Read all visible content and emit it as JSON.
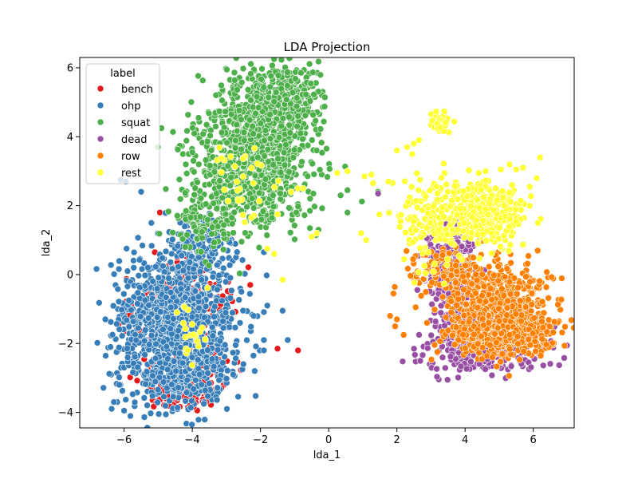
{
  "chart_data": {
    "type": "scatter",
    "title": "LDA Projection",
    "xlabel": "lda_1",
    "ylabel": "lda_2",
    "xlim": [
      -7.3,
      7.2
    ],
    "ylim": [
      -4.45,
      6.3
    ],
    "xticks": [
      -6,
      -4,
      -2,
      0,
      2,
      4,
      6
    ],
    "yticks": [
      -4,
      -2,
      0,
      2,
      4,
      6
    ],
    "grid": false,
    "legend": {
      "title": "label",
      "placement": "top-left"
    },
    "series": [
      {
        "name": "bench",
        "color": "#e41a1c",
        "clusters": [
          {
            "cx": -4.6,
            "cy": -1.2,
            "sx": 0.55,
            "sy": 0.55,
            "n": 330
          },
          {
            "cx": -4.2,
            "cy": -3.3,
            "sx": 0.6,
            "sy": 0.3,
            "n": 170
          },
          {
            "cx": -3.6,
            "cy": -2.5,
            "sx": 0.35,
            "sy": 0.3,
            "n": 60
          },
          {
            "cx": -3.8,
            "cy": -0.3,
            "sx": 0.5,
            "sy": 0.5,
            "n": 60
          }
        ],
        "points": [
          {
            "x": -0.9,
            "y": -2.2
          },
          {
            "x": -1.5,
            "y": -2.15
          },
          {
            "x": -2.3,
            "y": -0.3
          },
          {
            "x": -4.95,
            "y": 1.8
          },
          {
            "x": -5.1,
            "y": 0.65
          },
          {
            "x": -5.05,
            "y": -3.0
          }
        ]
      },
      {
        "name": "ohp",
        "color": "#377eb8",
        "clusters": [
          {
            "cx": -4.5,
            "cy": -1.5,
            "sx": 0.85,
            "sy": 1.05,
            "n": 1150
          },
          {
            "cx": -3.7,
            "cy": 0.7,
            "sx": 0.5,
            "sy": 0.5,
            "n": 120
          },
          {
            "cx": -4.0,
            "cy": -3.0,
            "sx": 0.7,
            "sy": 0.45,
            "n": 120
          }
        ],
        "points": [
          {
            "x": -6.1,
            "y": 2.75
          },
          {
            "x": -5.95,
            "y": 2.7
          },
          {
            "x": -5.5,
            "y": 2.4
          },
          {
            "x": -5.2,
            "y": 1.5
          },
          {
            "x": -5.9,
            "y": 0.1
          },
          {
            "x": -6.55,
            "y": -1.3
          },
          {
            "x": -6.4,
            "y": -2.1
          },
          {
            "x": -6.2,
            "y": -3.7
          },
          {
            "x": -6.0,
            "y": -3.95
          },
          {
            "x": -6.3,
            "y": -3.7
          },
          {
            "x": -1.9,
            "y": -2.2
          },
          {
            "x": -1.2,
            "y": -1.9
          },
          {
            "x": -1.35,
            "y": -1.05
          },
          {
            "x": -1.8,
            "y": -0.9
          },
          {
            "x": -2.2,
            "y": -1.2
          },
          {
            "x": -2.6,
            "y": -1.4
          },
          {
            "x": -1.9,
            "y": -1.9
          },
          {
            "x": -2.5,
            "y": -2.6
          },
          {
            "x": -2.8,
            "y": -2.9
          },
          {
            "x": -1.9,
            "y": 0.65
          }
        ]
      },
      {
        "name": "squat",
        "color": "#4daf4a",
        "clusters": [
          {
            "cx": -2.2,
            "cy": 3.6,
            "sx": 0.85,
            "sy": 1.1,
            "n": 1000
          },
          {
            "cx": -1.3,
            "cy": 5.2,
            "sx": 0.5,
            "sy": 0.45,
            "n": 220
          },
          {
            "cx": -3.5,
            "cy": 1.7,
            "sx": 0.5,
            "sy": 0.55,
            "n": 120
          }
        ],
        "points": [
          {
            "x": -0.45,
            "y": 2.35
          },
          {
            "x": 0.35,
            "y": 2.3
          },
          {
            "x": 0.55,
            "y": 2.45
          },
          {
            "x": -0.55,
            "y": 1.85
          },
          {
            "x": -0.55,
            "y": 1.35
          },
          {
            "x": -0.3,
            "y": 1.3
          },
          {
            "x": 0.55,
            "y": 1.8
          },
          {
            "x": 1.45,
            "y": 2.4
          },
          {
            "x": -0.95,
            "y": 1.8
          }
        ]
      },
      {
        "name": "dead",
        "color": "#984ea3",
        "clusters": [
          {
            "cx": 3.8,
            "cy": -0.8,
            "sx": 0.35,
            "sy": 0.75,
            "n": 300
          },
          {
            "cx": 4.6,
            "cy": -2.1,
            "sx": 0.9,
            "sy": 0.35,
            "n": 280
          },
          {
            "cx": 3.4,
            "cy": 0.4,
            "sx": 0.35,
            "sy": 0.45,
            "n": 120
          },
          {
            "cx": 3.8,
            "cy": 1.1,
            "sx": 0.25,
            "sy": 0.3,
            "n": 60
          }
        ],
        "points": [
          {
            "x": 1.45,
            "y": 2.35
          },
          {
            "x": 2.5,
            "y": -0.15
          },
          {
            "x": 2.6,
            "y": -0.45
          }
        ]
      },
      {
        "name": "row",
        "color": "#ff7f00",
        "clusters": [
          {
            "cx": 5.0,
            "cy": -0.9,
            "sx": 0.75,
            "sy": 0.6,
            "n": 600
          },
          {
            "cx": 5.1,
            "cy": -1.8,
            "sx": 0.8,
            "sy": 0.28,
            "n": 300
          },
          {
            "cx": 3.4,
            "cy": 0.15,
            "sx": 0.55,
            "sy": 0.3,
            "n": 100
          }
        ],
        "points": [
          {
            "x": 1.9,
            "y": -0.55
          },
          {
            "x": 1.8,
            "y": -1.2
          },
          {
            "x": 2.0,
            "y": -1.3
          },
          {
            "x": 1.95,
            "y": -1.5
          },
          {
            "x": 2.2,
            "y": -1.75
          },
          {
            "x": 2.55,
            "y": -0.95
          }
        ]
      },
      {
        "name": "rest",
        "color": "#ffff33",
        "clusters": [
          {
            "cx": 4.6,
            "cy": 1.8,
            "sx": 0.55,
            "sy": 0.45,
            "n": 330
          },
          {
            "cx": 3.0,
            "cy": 1.6,
            "sx": 0.6,
            "sy": 0.7,
            "n": 160
          },
          {
            "cx": 3.25,
            "cy": 4.4,
            "sx": 0.15,
            "sy": 0.15,
            "n": 40
          },
          {
            "cx": -2.5,
            "cy": 2.7,
            "sx": 0.4,
            "sy": 0.6,
            "n": 30
          },
          {
            "cx": -4.0,
            "cy": -1.8,
            "sx": 0.3,
            "sy": 0.4,
            "n": 20
          }
        ],
        "points": [
          {
            "x": 2.0,
            "y": 3.6
          },
          {
            "x": 2.3,
            "y": 3.7
          },
          {
            "x": 2.5,
            "y": 3.8
          },
          {
            "x": 2.65,
            "y": 3.9
          },
          {
            "x": 2.45,
            "y": 3.5
          },
          {
            "x": 1.05,
            "y": 2.85
          },
          {
            "x": 1.3,
            "y": 2.65
          },
          {
            "x": 1.25,
            "y": 2.9
          },
          {
            "x": 0.25,
            "y": 2.95
          },
          {
            "x": 0.55,
            "y": 3.0
          },
          {
            "x": -0.75,
            "y": 2.5
          },
          {
            "x": -0.9,
            "y": 2.5
          },
          {
            "x": -1.1,
            "y": 2.4
          },
          {
            "x": -0.5,
            "y": 1.1
          },
          {
            "x": -0.35,
            "y": 1.2
          },
          {
            "x": -1.5,
            "y": 1.75
          },
          {
            "x": -1.8,
            "y": 0.75
          },
          {
            "x": -1.6,
            "y": 0.6
          },
          {
            "x": 0.95,
            "y": 1.2
          },
          {
            "x": 1.1,
            "y": 1.0
          },
          {
            "x": -1.35,
            "y": -0.15
          },
          {
            "x": 6.2,
            "y": 3.4
          },
          {
            "x": 5.9,
            "y": 2.55
          },
          {
            "x": 6.1,
            "y": 2.8
          },
          {
            "x": 5.5,
            "y": 3.05
          },
          {
            "x": 5.7,
            "y": 3.1
          },
          {
            "x": 4.4,
            "y": 2.95
          },
          {
            "x": 4.6,
            "y": 3.0
          },
          {
            "x": 5.05,
            "y": 3.05
          },
          {
            "x": 1.75,
            "y": 2.7
          }
        ]
      }
    ]
  }
}
